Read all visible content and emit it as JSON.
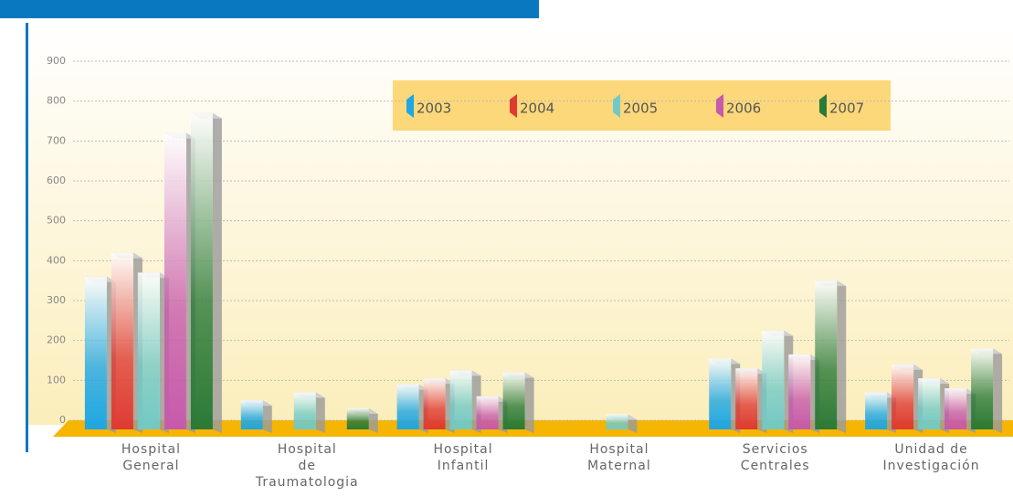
{
  "chart_data": {
    "type": "bar3d",
    "categories": [
      "Hospital\nGeneral",
      "Hospital\nde\nTraumatologia",
      "Hospital\nInfantil",
      "Hospital\nMaternal",
      "Servicios\nCentrales",
      "Unidad de\nInvestigación"
    ],
    "series": [
      {
        "name": "2003",
        "color": "#1fa6e3",
        "values": [
          360,
          50,
          90,
          null,
          155,
          70
        ]
      },
      {
        "name": "2004",
        "color": "#de3b33",
        "values": [
          420,
          null,
          105,
          null,
          130,
          140
        ]
      },
      {
        "name": "2005",
        "color": "#72c9c6",
        "values": [
          370,
          70,
          125,
          15,
          225,
          105
        ]
      },
      {
        "name": "2006",
        "color": "#c65aab",
        "values": [
          720,
          null,
          60,
          null,
          165,
          80
        ]
      },
      {
        "name": "2007",
        "color": "#2b7a37",
        "values": [
          770,
          30,
          120,
          null,
          350,
          180
        ]
      }
    ],
    "ylim": [
      0,
      900
    ],
    "yticks": [
      0,
      100,
      200,
      300,
      400,
      500,
      600,
      700,
      800,
      900
    ],
    "grid": true
  }
}
